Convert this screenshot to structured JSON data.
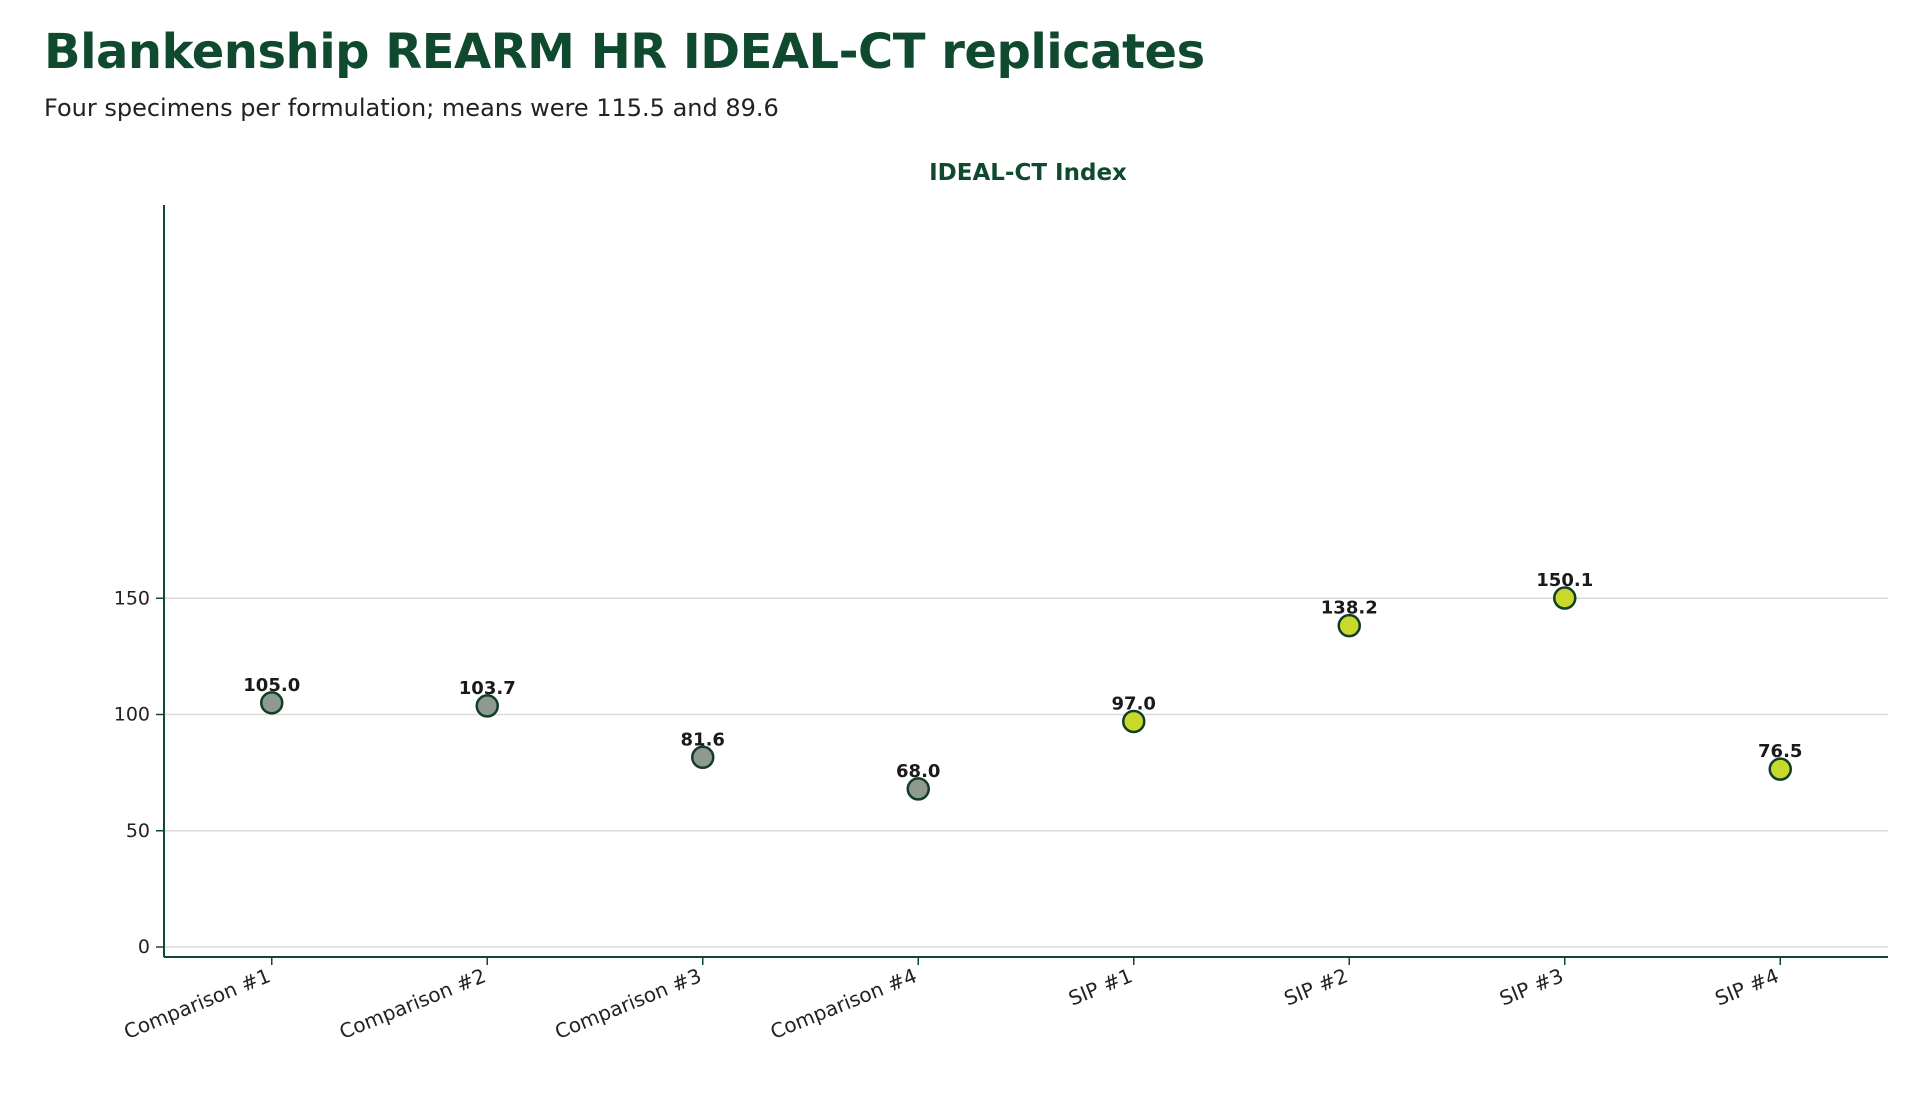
{
  "title": "Blankenship REARM HR IDEAL-CT replicates",
  "subtitle": "Four specimens per formulation; means were 115.5 and 89.6",
  "colors": {
    "title": "#0f4a2e",
    "axis": "#0f4a2e",
    "grid": "#d9d9d9",
    "comparison_fill": "#8e9a8f",
    "sip_fill": "#c8d92c",
    "marker_stroke": "#123d28"
  },
  "chart_data": {
    "type": "scatter",
    "title": "IDEAL-CT Index",
    "xlabel": "",
    "ylabel": "",
    "ylim": [
      0,
      160
    ],
    "yticks": [
      0,
      50,
      100,
      150
    ],
    "grid": true,
    "categories": [
      "Comparison #1",
      "Comparison #2",
      "Comparison #3",
      "Comparison #4",
      "SIP #1",
      "SIP #2",
      "SIP #3",
      "SIP #4"
    ],
    "values": [
      105.0,
      103.7,
      81.6,
      68.0,
      97.0,
      138.2,
      150.1,
      76.5
    ],
    "value_labels": [
      "105.0",
      "103.7",
      "81.6",
      "68.0",
      "97.0",
      "138.2",
      "150.1",
      "76.5"
    ],
    "groups": [
      "comparison",
      "comparison",
      "comparison",
      "comparison",
      "sip",
      "sip",
      "sip",
      "sip"
    ]
  }
}
